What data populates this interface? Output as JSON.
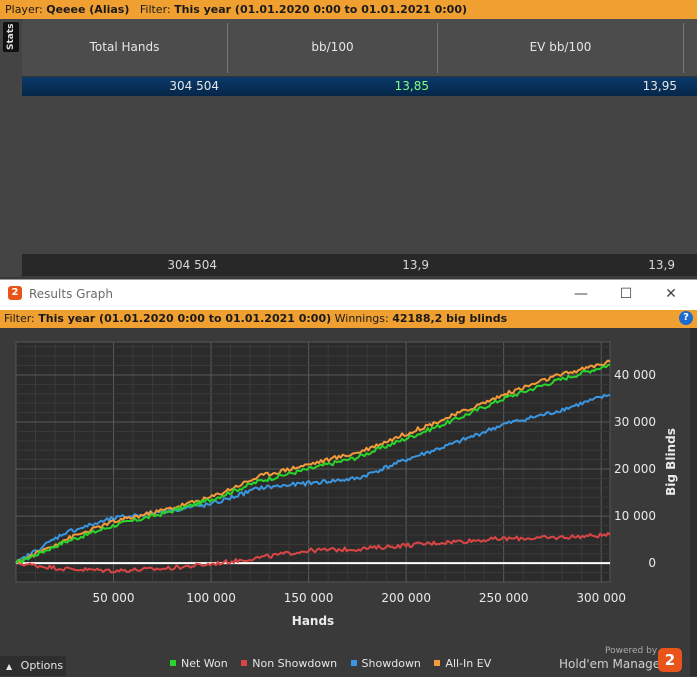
{
  "top_filter": {
    "player_prefix": "Player: ",
    "player": "Qeeee (Alias)",
    "filter_prefix": "Filter: ",
    "filter": "This year (01.01.2020 0:00 to 01.01.2021 0:00)"
  },
  "stats_tab": {
    "label": "Stats"
  },
  "stats_table": {
    "headers": [
      "Total Hands",
      "bb/100",
      "EV bb/100"
    ],
    "row": [
      "304 504",
      "13,85",
      "13,95"
    ],
    "total": [
      "304 504",
      "13,9",
      "13,9"
    ],
    "highlight_color": "#7fff7f"
  },
  "results_window": {
    "title": "Results Graph",
    "logo_text": "2",
    "minimize": "—",
    "maximize": "☐",
    "close": "✕",
    "filter_prefix": "Filter: ",
    "filter": "This year (01.01.2020 0:00 to 01.01.2021 0:00)",
    "winnings_prefix": "Winnings: ",
    "winnings": "42188,2 big blinds",
    "help": "?"
  },
  "chart_data": {
    "type": "line",
    "xlabel": "Hands",
    "ylabel": "Big Blinds",
    "xlim": [
      0,
      304504
    ],
    "ylim": [
      -4000,
      47000
    ],
    "x_ticks": [
      50000,
      100000,
      150000,
      200000,
      250000,
      300000
    ],
    "x_tick_labels": [
      "50 000",
      "100 000",
      "150 000",
      "200 000",
      "250 000",
      "300 000"
    ],
    "y_ticks": [
      0,
      10000,
      20000,
      30000,
      40000
    ],
    "y_tick_labels": [
      "0",
      "10 000",
      "20 000",
      "30 000",
      "40 000"
    ],
    "zero_line": true,
    "grid": true,
    "legend_position": "bottom",
    "x": [
      0,
      25000,
      50000,
      75000,
      100000,
      125000,
      150000,
      175000,
      200000,
      225000,
      250000,
      275000,
      304504
    ],
    "series": [
      {
        "name": "Net Won",
        "color": "#2bd42b",
        "values": [
          0,
          4500,
          8000,
          10500,
          13500,
          17500,
          20000,
          22500,
          26500,
          30500,
          35000,
          38500,
          42200
        ]
      },
      {
        "name": "Non Showdown",
        "color": "#d94545",
        "values": [
          0,
          -1200,
          -1600,
          -1200,
          -200,
          1200,
          2700,
          3000,
          3800,
          4600,
          5200,
          5400,
          6000
        ]
      },
      {
        "name": "Showdown",
        "color": "#3a96e0",
        "values": [
          0,
          6500,
          9500,
          11000,
          12500,
          16000,
          17000,
          18000,
          22000,
          25500,
          29500,
          32000,
          35800
        ]
      },
      {
        "name": "All-In EV",
        "color": "#f39a3a",
        "values": [
          0,
          5000,
          8800,
          11200,
          14000,
          18500,
          21000,
          23500,
          27500,
          31500,
          35800,
          39500,
          42800
        ]
      }
    ]
  },
  "bottom": {
    "options": "Options",
    "options_icon": "caret-up-icon",
    "powered_by": "Powered by",
    "brand": "Hold'em Manager",
    "brand_logo": "2"
  }
}
